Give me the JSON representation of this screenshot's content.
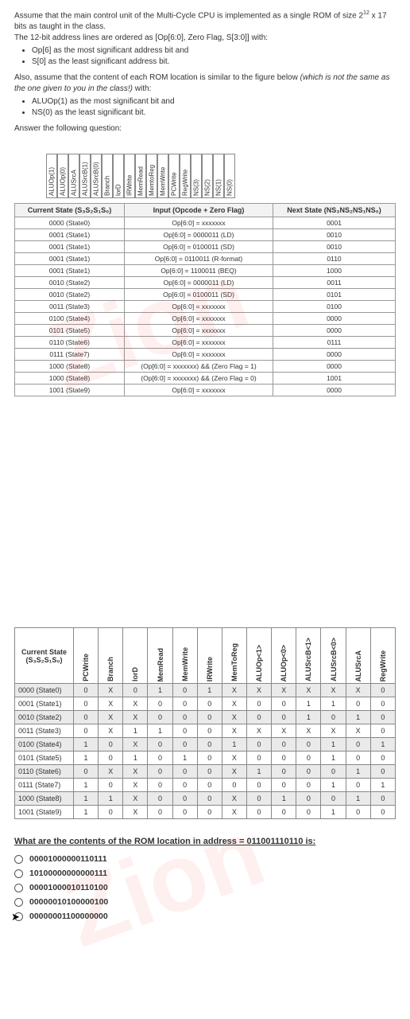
{
  "intro": {
    "p1": "Assume that the main control unit of the Multi-Cycle CPU is implemented as a single ROM of size 2",
    "p1_sup": "12",
    "p1_cont": " x 17 bits as taught in the class.",
    "p2": "The 12-bit address lines are ordered as [Op[6:0], Zero Flag, S[3:0]] with:",
    "b1": "Op[6] as the most significant address bit and",
    "b2": "S[0] as the least significant address bit.",
    "p3a": "Also, assume that the content of each ROM location is similar to the figure below ",
    "p3b": "(which is not the same as the one given to you in the class!)",
    "p3c": " with:",
    "b3": "ALUOp(1) as the most significant bit and",
    "b4": "NS(0) as the least significant bit.",
    "p4": "Answer the following question:"
  },
  "headerCols": [
    "ALUOp(1)",
    "ALUOp(0)",
    "ALUSrcA",
    "ALUSrcB(1)",
    "ALUSrcB(0)",
    "Branch",
    "lorD",
    "IRWrite",
    "MemRead",
    "MemtoReg",
    "MemWrite",
    "PCWrite",
    "RegWrite",
    "NS(3)",
    "NS(2)",
    "NS(1)",
    "NS(0)"
  ],
  "stateTable": {
    "headers": [
      "Current State (S₃S₂S₁S₀)",
      "Input (Opcode + Zero Flag)",
      "Next State (NS₃NS₂NS₁NS₀)"
    ],
    "rows": [
      [
        "0000 (State0)",
        "Op[6:0] = xxxxxxx",
        "0001"
      ],
      [
        "0001 (State1)",
        "Op[6:0] = 0000011 (LD)",
        "0010"
      ],
      [
        "0001 (State1)",
        "Op[6:0] = 0100011 (SD)",
        "0010"
      ],
      [
        "0001 (State1)",
        "Op[6:0] = 0110011 (R-format)",
        "0110"
      ],
      [
        "0001 (State1)",
        "Op[6:0] = 1100011 (BEQ)",
        "1000"
      ],
      [
        "0010 (State2)",
        "Op[6:0] = 0000011 (LD)",
        "0011"
      ],
      [
        "0010 (State2)",
        "Op[6:0] = 0100011 (SD)",
        "0101"
      ],
      [
        "0011 (State3)",
        "Op[6:0] = xxxxxxx",
        "0100"
      ],
      [
        "0100 (State4)",
        "Op[6:0] = xxxxxxx",
        "0000"
      ],
      [
        "0101 (State5)",
        "Op[6:0] = xxxxxxx",
        "0000"
      ],
      [
        "0110 (State6)",
        "Op[6:0] = xxxxxxx",
        "0111"
      ],
      [
        "0111 (State7)",
        "Op[6:0] = xxxxxxx",
        "0000"
      ],
      [
        "1000 (State8)",
        "(Op[6:0] = xxxxxxx) && (Zero Flag = 1)",
        "0000"
      ],
      [
        "1000 (State8)",
        "(Op[6:0] = xxxxxxx) && (Zero Flag = 0)",
        "1001"
      ],
      [
        "1001 (State9)",
        "Op[6:0] = xxxxxxx",
        "0000"
      ]
    ]
  },
  "dataTable": {
    "corner": "Current State (S₃S₂S₁S₀)",
    "cols": [
      "PCWrite",
      "Branch",
      "lorD",
      "MemRead",
      "MemWrite",
      "IRWrite",
      "MemToReg",
      "ALUOp<1>",
      "ALUOp<0>",
      "ALUSrcB<1>",
      "ALUSrcB<0>",
      "ALUSrcA",
      "RegWrite"
    ],
    "rows": [
      {
        "label": "0000 (State0)",
        "cells": [
          "0",
          "X",
          "0",
          "1",
          "0",
          "1",
          "X",
          "X",
          "X",
          "X",
          "X",
          "X",
          "0"
        ]
      },
      {
        "label": "0001 (State1)",
        "cells": [
          "0",
          "X",
          "X",
          "0",
          "0",
          "0",
          "X",
          "0",
          "0",
          "1",
          "1",
          "0",
          "0"
        ]
      },
      {
        "label": "0010 (State2)",
        "cells": [
          "0",
          "X",
          "X",
          "0",
          "0",
          "0",
          "X",
          "0",
          "0",
          "1",
          "0",
          "1",
          "0"
        ]
      },
      {
        "label": "0011 (State3)",
        "cells": [
          "0",
          "X",
          "1",
          "1",
          "0",
          "0",
          "X",
          "X",
          "X",
          "X",
          "X",
          "X",
          "0"
        ]
      },
      {
        "label": "0100 (State4)",
        "cells": [
          "1",
          "0",
          "X",
          "0",
          "0",
          "0",
          "1",
          "0",
          "0",
          "0",
          "1",
          "0",
          "1"
        ]
      },
      {
        "label": "0101 (State5)",
        "cells": [
          "1",
          "0",
          "1",
          "0",
          "1",
          "0",
          "X",
          "0",
          "0",
          "0",
          "1",
          "0",
          "0"
        ]
      },
      {
        "label": "0110 (State6)",
        "cells": [
          "0",
          "X",
          "X",
          "0",
          "0",
          "0",
          "X",
          "1",
          "0",
          "0",
          "0",
          "1",
          "0"
        ]
      },
      {
        "label": "0111 (State7)",
        "cells": [
          "1",
          "0",
          "X",
          "0",
          "0",
          "0",
          "0",
          "0",
          "0",
          "0",
          "1",
          "0",
          "1"
        ]
      },
      {
        "label": "1000 (State8)",
        "cells": [
          "1",
          "1",
          "X",
          "0",
          "0",
          "0",
          "X",
          "0",
          "1",
          "0",
          "0",
          "1",
          "0"
        ]
      },
      {
        "label": "1001 (State9)",
        "cells": [
          "1",
          "0",
          "X",
          "0",
          "0",
          "0",
          "X",
          "0",
          "0",
          "0",
          "1",
          "0",
          "0"
        ]
      }
    ]
  },
  "question": "What are the contents of the ROM location in address = 011001110110 is:",
  "options": [
    "00001000000110111",
    "10100000000000111",
    "00001000010110100",
    "00000010100000100",
    "00000001100000000"
  ]
}
